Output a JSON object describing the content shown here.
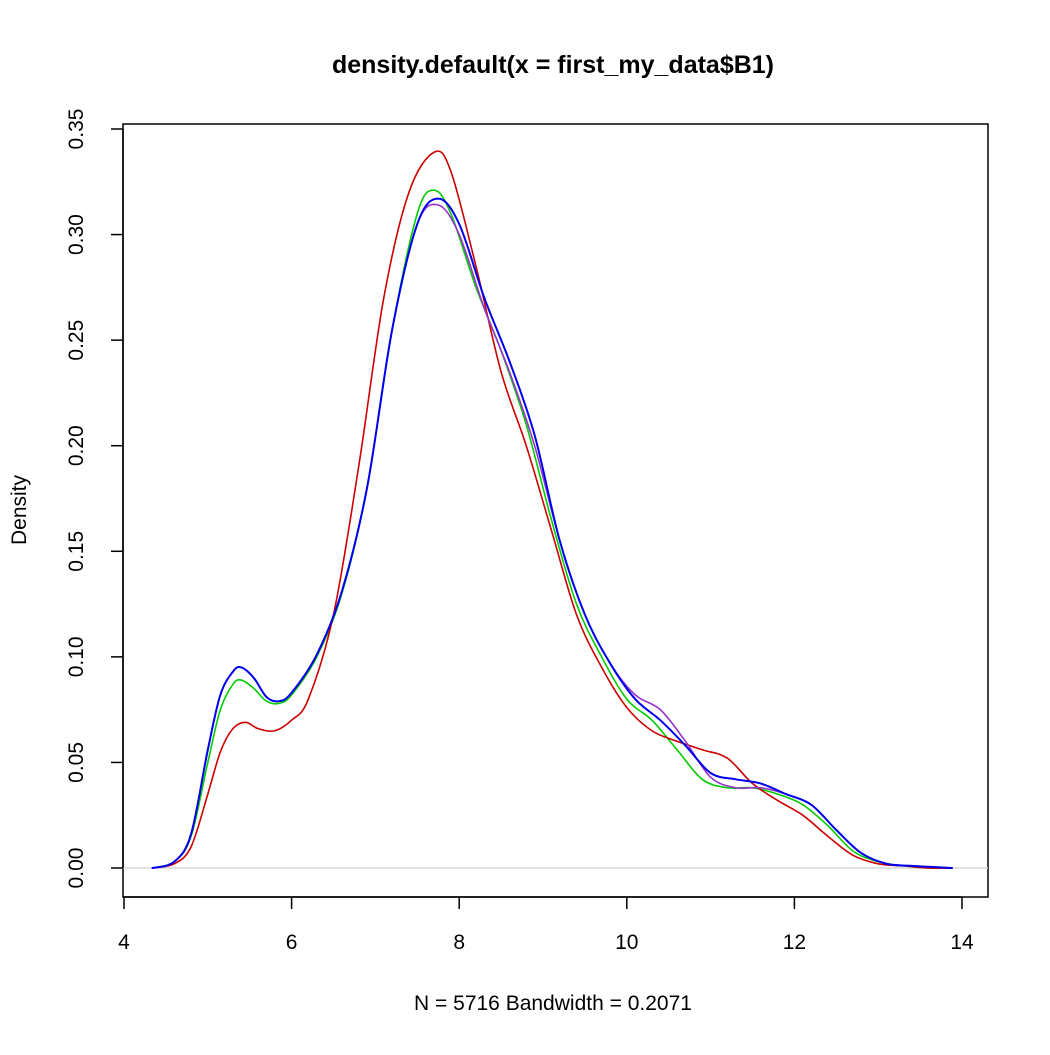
{
  "chart_data": {
    "type": "line",
    "title": "density.default(x = first_my_data$B1)",
    "xlabel": "N = 5716   Bandwidth = 0.2071",
    "ylabel": "Density",
    "xlim": [
      4,
      14
    ],
    "ylim": [
      0,
      0.35
    ],
    "x_ticks": [
      "4",
      "6",
      "8",
      "10",
      "12",
      "14"
    ],
    "y_ticks": [
      "0.00",
      "0.05",
      "0.10",
      "0.15",
      "0.20",
      "0.25",
      "0.30",
      "0.35"
    ],
    "grid": false,
    "legend": "none",
    "baseline": 0,
    "colors": {
      "axis": "#000000",
      "baseline": "#d9d9d9"
    },
    "series": [
      {
        "color": "#00cc00",
        "x": [
          4.34,
          4.6,
          4.8,
          5.0,
          5.15,
          5.3,
          5.4,
          5.55,
          5.7,
          5.85,
          6.0,
          6.3,
          6.6,
          6.9,
          7.2,
          7.5,
          7.7,
          7.9,
          8.2,
          8.5,
          8.8,
          9.1,
          9.4,
          9.7,
          10.0,
          10.3,
          10.6,
          10.9,
          11.2,
          11.5,
          11.8,
          12.1,
          12.4,
          12.7,
          13.0,
          13.3,
          13.6,
          13.88
        ],
        "values": [
          0.0,
          0.003,
          0.015,
          0.05,
          0.075,
          0.087,
          0.089,
          0.085,
          0.079,
          0.078,
          0.082,
          0.1,
          0.13,
          0.18,
          0.255,
          0.31,
          0.321,
          0.31,
          0.275,
          0.245,
          0.21,
          0.165,
          0.125,
          0.1,
          0.08,
          0.07,
          0.056,
          0.042,
          0.038,
          0.038,
          0.035,
          0.03,
          0.02,
          0.008,
          0.003,
          0.001,
          0.0,
          0.0
        ]
      },
      {
        "color": "#cc0000",
        "x": [
          4.34,
          4.6,
          4.8,
          5.0,
          5.15,
          5.3,
          5.45,
          5.6,
          5.8,
          6.0,
          6.2,
          6.5,
          6.8,
          7.1,
          7.4,
          7.7,
          7.9,
          8.2,
          8.5,
          8.8,
          9.1,
          9.4,
          9.7,
          10.0,
          10.3,
          10.6,
          10.9,
          11.2,
          11.5,
          11.8,
          12.1,
          12.4,
          12.7,
          13.0,
          13.3,
          13.6,
          13.88
        ],
        "values": [
          0.0,
          0.002,
          0.01,
          0.035,
          0.055,
          0.066,
          0.069,
          0.066,
          0.065,
          0.07,
          0.08,
          0.12,
          0.19,
          0.27,
          0.32,
          0.339,
          0.33,
          0.285,
          0.235,
          0.2,
          0.16,
          0.12,
          0.095,
          0.076,
          0.065,
          0.06,
          0.056,
          0.052,
          0.04,
          0.032,
          0.025,
          0.015,
          0.006,
          0.002,
          0.001,
          0.0,
          0.0
        ]
      },
      {
        "color": "#9933cc",
        "x": [
          4.34,
          4.6,
          4.8,
          5.0,
          5.15,
          5.3,
          5.4,
          5.55,
          5.7,
          5.85,
          6.0,
          6.3,
          6.6,
          6.9,
          7.2,
          7.5,
          7.75,
          8.0,
          8.3,
          8.6,
          8.9,
          9.2,
          9.5,
          9.8,
          10.1,
          10.4,
          10.7,
          11.0,
          11.3,
          11.6,
          11.9,
          12.2,
          12.5,
          12.8,
          13.1,
          13.4,
          13.88
        ],
        "values": [
          0.0,
          0.003,
          0.016,
          0.056,
          0.082,
          0.093,
          0.095,
          0.09,
          0.081,
          0.079,
          0.083,
          0.101,
          0.131,
          0.18,
          0.255,
          0.305,
          0.314,
          0.3,
          0.265,
          0.235,
          0.2,
          0.155,
          0.12,
          0.097,
          0.082,
          0.075,
          0.06,
          0.043,
          0.038,
          0.038,
          0.035,
          0.03,
          0.018,
          0.007,
          0.002,
          0.001,
          0.0
        ]
      },
      {
        "color": "#0000ee",
        "x": [
          4.34,
          4.6,
          4.8,
          5.0,
          5.15,
          5.3,
          5.4,
          5.55,
          5.7,
          5.85,
          6.0,
          6.3,
          6.6,
          6.9,
          7.2,
          7.5,
          7.75,
          8.0,
          8.3,
          8.6,
          8.9,
          9.2,
          9.5,
          9.8,
          10.1,
          10.4,
          10.7,
          11.0,
          11.3,
          11.6,
          11.9,
          12.2,
          12.5,
          12.8,
          13.1,
          13.4,
          13.88
        ],
        "values": [
          0.0,
          0.003,
          0.016,
          0.056,
          0.082,
          0.093,
          0.095,
          0.09,
          0.081,
          0.079,
          0.083,
          0.101,
          0.131,
          0.18,
          0.255,
          0.305,
          0.317,
          0.305,
          0.27,
          0.24,
          0.205,
          0.155,
          0.12,
          0.097,
          0.08,
          0.07,
          0.058,
          0.045,
          0.042,
          0.04,
          0.035,
          0.03,
          0.018,
          0.007,
          0.002,
          0.001,
          0.0
        ]
      }
    ]
  }
}
